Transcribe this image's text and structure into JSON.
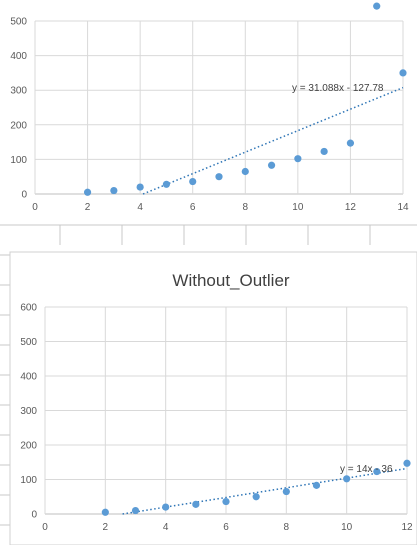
{
  "colors": {
    "marker": "#5b9bd5",
    "trendline": "#2e75b6",
    "gridline": "#d9d9d9",
    "axis": "#bfbfbf",
    "sheet_line": "#c8c8c8"
  },
  "chart_data": [
    {
      "type": "scatter",
      "title": "",
      "grid": true,
      "xlim": [
        0,
        14
      ],
      "ylim": [
        0,
        500
      ],
      "x_ticks": [
        "0",
        "2",
        "4",
        "6",
        "8",
        "10",
        "12",
        "14"
      ],
      "y_ticks": [
        "0",
        "100",
        "200",
        "300",
        "400",
        "500"
      ],
      "x": [
        2,
        3,
        4,
        5,
        6,
        7,
        8,
        9,
        10,
        11,
        12,
        13,
        14
      ],
      "y": [
        5,
        10,
        20,
        28,
        36,
        50,
        65,
        83,
        102,
        123,
        147,
        543,
        350
      ],
      "trendline": {
        "type": "linear",
        "slope": 31.088,
        "intercept": -127.78,
        "label": "y = 31.088x - 127.78"
      }
    },
    {
      "type": "scatter",
      "title": "Without_Outlier",
      "grid": true,
      "xlim": [
        0,
        12
      ],
      "ylim": [
        0,
        600
      ],
      "x_ticks": [
        "0",
        "2",
        "4",
        "6",
        "8",
        "10",
        "12"
      ],
      "y_ticks": [
        "0",
        "100",
        "200",
        "300",
        "400",
        "500",
        "600"
      ],
      "x": [
        2,
        3,
        4,
        5,
        6,
        7,
        8,
        9,
        10,
        11,
        12
      ],
      "y": [
        5,
        10,
        20,
        28,
        36,
        50,
        65,
        83,
        102,
        123,
        147
      ],
      "trendline": {
        "type": "linear",
        "slope": 14,
        "intercept": -36,
        "label": "y = 14x - 36"
      }
    }
  ]
}
